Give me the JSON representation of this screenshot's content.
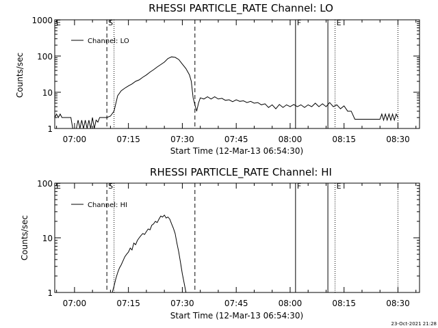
{
  "footer": {
    "timestamp": "23-Oct-2021 21:28"
  },
  "chart_data": [
    {
      "type": "line",
      "title": "RHESSI PARTICLE_RATE Channel: LO",
      "xlabel": "Start Time (12-Mar-13 06:54:30)",
      "ylabel": "Counts/sec",
      "yscale": "log",
      "xlim_minutes": [
        "06:54:30",
        "08:36:00"
      ],
      "ylim": [
        1,
        1000
      ],
      "x_ticks": [
        "07:00",
        "07:15",
        "07:30",
        "07:45",
        "08:00",
        "08:15",
        "08:30"
      ],
      "y_ticks": [
        "1",
        "10",
        "100",
        "1000"
      ],
      "legend": {
        "position": "top-left",
        "entries": [
          "Channel: LO"
        ]
      },
      "markers": [
        {
          "time": "06:54:30",
          "style": "dotted",
          "label": "E"
        },
        {
          "time": "07:09:00",
          "style": "dashed",
          "label": "S"
        },
        {
          "time": "07:11:00",
          "style": "dotted",
          "label": ""
        },
        {
          "time": "07:33:30",
          "style": "dashed",
          "label": ""
        },
        {
          "time": "08:01:30",
          "style": "solid",
          "label": "F"
        },
        {
          "time": "08:10:30",
          "style": "solid",
          "label": ""
        },
        {
          "time": "08:12:30",
          "style": "dotted",
          "label": "E"
        },
        {
          "time": "08:30:00",
          "style": "dotted",
          "label": ""
        }
      ],
      "series": [
        {
          "points": [
            [
              "06:54:30",
              2
            ],
            [
              "06:55:00",
              2.5
            ],
            [
              "06:55:30",
              2
            ],
            [
              "06:56:00",
              2.5
            ],
            [
              "06:56:30",
              2
            ],
            [
              "06:57:00",
              2
            ],
            [
              "06:59:00",
              2
            ],
            [
              "06:59:30",
              1
            ],
            [
              "07:00:00",
              1
            ],
            [
              "07:00:30",
              1
            ],
            [
              "07:01:00",
              1.7
            ],
            [
              "07:01:30",
              1
            ],
            [
              "07:02:00",
              1.7
            ],
            [
              "07:02:30",
              1
            ],
            [
              "07:03:00",
              1.7
            ],
            [
              "07:03:30",
              1
            ],
            [
              "07:04:00",
              1.7
            ],
            [
              "07:04:30",
              1
            ],
            [
              "07:05:00",
              2
            ],
            [
              "07:05:30",
              1
            ],
            [
              "07:06:00",
              1.7
            ],
            [
              "07:06:30",
              1.5
            ],
            [
              "07:07:00",
              2
            ],
            [
              "07:08:00",
              2
            ],
            [
              "07:09:00",
              2
            ],
            [
              "07:10:00",
              2.2
            ],
            [
              "07:11:00",
              3
            ],
            [
              "07:12:00",
              8
            ],
            [
              "07:13:00",
              11
            ],
            [
              "07:14:00",
              13
            ],
            [
              "07:15:00",
              15
            ],
            [
              "07:16:00",
              17
            ],
            [
              "07:17:00",
              20
            ],
            [
              "07:18:00",
              22
            ],
            [
              "07:19:00",
              26
            ],
            [
              "07:20:00",
              30
            ],
            [
              "07:21:00",
              36
            ],
            [
              "07:22:00",
              42
            ],
            [
              "07:23:00",
              50
            ],
            [
              "07:24:00",
              58
            ],
            [
              "07:25:00",
              68
            ],
            [
              "07:26:00",
              85
            ],
            [
              "07:27:00",
              95
            ],
            [
              "07:28:00",
              92
            ],
            [
              "07:29:00",
              80
            ],
            [
              "07:30:00",
              60
            ],
            [
              "07:31:00",
              45
            ],
            [
              "07:32:00",
              30
            ],
            [
              "07:32:30",
              20
            ],
            [
              "07:33:00",
              7
            ],
            [
              "07:33:30",
              4.5
            ],
            [
              "07:34:00",
              3
            ],
            [
              "07:34:30",
              5
            ],
            [
              "07:35:00",
              7
            ],
            [
              "07:36:00",
              6.5
            ],
            [
              "07:37:00",
              7.5
            ],
            [
              "07:38:00",
              6.5
            ],
            [
              "07:39:00",
              7.5
            ],
            [
              "07:40:00",
              6.5
            ],
            [
              "07:41:00",
              6.8
            ],
            [
              "07:42:00",
              6
            ],
            [
              "07:43:00",
              6.2
            ],
            [
              "07:44:00",
              5.5
            ],
            [
              "07:45:00",
              6.2
            ],
            [
              "07:46:00",
              5.6
            ],
            [
              "07:47:00",
              5.8
            ],
            [
              "07:48:00",
              5.2
            ],
            [
              "07:49:00",
              5.6
            ],
            [
              "07:50:00",
              5
            ],
            [
              "07:51:00",
              5.2
            ],
            [
              "07:52:00",
              4.5
            ],
            [
              "07:53:00",
              4.8
            ],
            [
              "07:54:00",
              3.8
            ],
            [
              "07:55:00",
              4.5
            ],
            [
              "07:56:00",
              3.5
            ],
            [
              "07:57:00",
              4.6
            ],
            [
              "07:58:00",
              3.8
            ],
            [
              "07:59:00",
              4.5
            ],
            [
              "08:00:00",
              4
            ],
            [
              "08:01:00",
              4.6
            ],
            [
              "08:02:00",
              4
            ],
            [
              "08:03:00",
              4.5
            ],
            [
              "08:04:00",
              3.8
            ],
            [
              "08:05:00",
              4.5
            ],
            [
              "08:06:00",
              4
            ],
            [
              "08:07:00",
              5
            ],
            [
              "08:08:00",
              4
            ],
            [
              "08:09:00",
              4.8
            ],
            [
              "08:10:00",
              4
            ],
            [
              "08:11:00",
              5.2
            ],
            [
              "08:12:00",
              4
            ],
            [
              "08:13:00",
              4.5
            ],
            [
              "08:14:00",
              3.5
            ],
            [
              "08:15:00",
              4.2
            ],
            [
              "08:16:00",
              3
            ],
            [
              "08:17:00",
              3
            ],
            [
              "08:18:00",
              1.8
            ],
            [
              "08:20:00",
              1.8
            ],
            [
              "08:24:00",
              1.8
            ],
            [
              "08:25:00",
              1.8
            ],
            [
              "08:25:30",
              2.5
            ],
            [
              "08:26:00",
              1.7
            ],
            [
              "08:26:30",
              2.5
            ],
            [
              "08:27:00",
              1.7
            ],
            [
              "08:27:30",
              2.5
            ],
            [
              "08:28:00",
              1.7
            ],
            [
              "08:28:30",
              2.5
            ],
            [
              "08:29:00",
              1.7
            ],
            [
              "08:29:30",
              2.5
            ],
            [
              "08:30:00",
              2
            ]
          ]
        }
      ]
    },
    {
      "type": "line",
      "title": "RHESSI PARTICLE_RATE Channel: HI",
      "xlabel": "Start Time (12-Mar-13 06:54:30)",
      "ylabel": "Counts/sec",
      "yscale": "log",
      "xlim_minutes": [
        "06:54:30",
        "08:36:00"
      ],
      "ylim": [
        1,
        100
      ],
      "x_ticks": [
        "07:00",
        "07:15",
        "07:30",
        "07:45",
        "08:00",
        "08:15",
        "08:30"
      ],
      "y_ticks": [
        "1",
        "10",
        "100"
      ],
      "legend": {
        "position": "top-left",
        "entries": [
          "Channel: HI"
        ]
      },
      "markers": [
        {
          "time": "06:54:30",
          "style": "dotted",
          "label": "E"
        },
        {
          "time": "07:09:00",
          "style": "dashed",
          "label": "S"
        },
        {
          "time": "07:11:00",
          "style": "dotted",
          "label": ""
        },
        {
          "time": "07:33:30",
          "style": "dashed",
          "label": ""
        },
        {
          "time": "08:01:30",
          "style": "solid",
          "label": "F"
        },
        {
          "time": "08:10:30",
          "style": "solid",
          "label": ""
        },
        {
          "time": "08:12:30",
          "style": "dotted",
          "label": "E"
        },
        {
          "time": "08:30:00",
          "style": "dotted",
          "label": ""
        }
      ],
      "series": [
        {
          "points": [
            [
              "07:10:30",
              1
            ],
            [
              "07:11:00",
              1.3
            ],
            [
              "07:11:30",
              1.8
            ],
            [
              "07:12:00",
              2.3
            ],
            [
              "07:12:30",
              2.8
            ],
            [
              "07:13:00",
              3.2
            ],
            [
              "07:13:30",
              3.8
            ],
            [
              "07:14:00",
              4.5
            ],
            [
              "07:14:30",
              5
            ],
            [
              "07:15:00",
              5.5
            ],
            [
              "07:15:30",
              6.5
            ],
            [
              "07:16:00",
              6
            ],
            [
              "07:16:30",
              8
            ],
            [
              "07:17:00",
              7.5
            ],
            [
              "07:17:30",
              9
            ],
            [
              "07:18:00",
              10
            ],
            [
              "07:18:30",
              11
            ],
            [
              "07:19:00",
              12
            ],
            [
              "07:19:30",
              11.5
            ],
            [
              "07:20:00",
              13
            ],
            [
              "07:20:30",
              14.5
            ],
            [
              "07:21:00",
              14
            ],
            [
              "07:21:30",
              17
            ],
            [
              "07:22:00",
              18
            ],
            [
              "07:22:30",
              20
            ],
            [
              "07:23:00",
              19
            ],
            [
              "07:23:30",
              22
            ],
            [
              "07:24:00",
              25
            ],
            [
              "07:24:30",
              24
            ],
            [
              "07:25:00",
              26
            ],
            [
              "07:25:30",
              23
            ],
            [
              "07:26:00",
              24
            ],
            [
              "07:26:30",
              22
            ],
            [
              "07:27:00",
              18
            ],
            [
              "07:27:30",
              15
            ],
            [
              "07:28:00",
              12
            ],
            [
              "07:28:30",
              8
            ],
            [
              "07:29:00",
              5.5
            ],
            [
              "07:29:30",
              3.5
            ],
            [
              "07:30:00",
              2.2
            ],
            [
              "07:30:30",
              1.5
            ],
            [
              "07:31:00",
              1
            ]
          ]
        }
      ]
    }
  ]
}
